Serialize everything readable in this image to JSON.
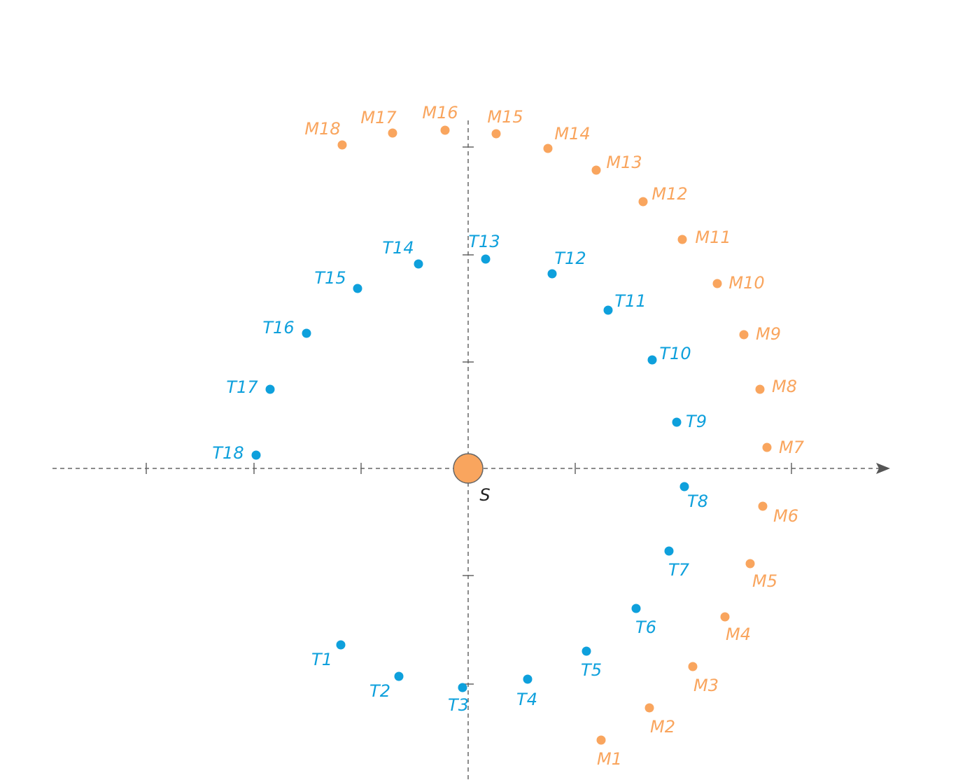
{
  "center": "S",
  "inner_points": [
    "T1",
    "T2",
    "T3",
    "T4",
    "T5",
    "T6",
    "T7",
    "T8",
    "T9",
    "T10",
    "T11",
    "T12",
    "T13",
    "T14",
    "T15",
    "T16",
    "T17",
    "T18"
  ],
  "outer_points": [
    "M1",
    "M2",
    "M3",
    "M4",
    "M5",
    "M6",
    "M7",
    "M8",
    "M9",
    "M10",
    "M11",
    "M12",
    "M13",
    "M14",
    "M15",
    "M16",
    "M17",
    "M18"
  ]
}
